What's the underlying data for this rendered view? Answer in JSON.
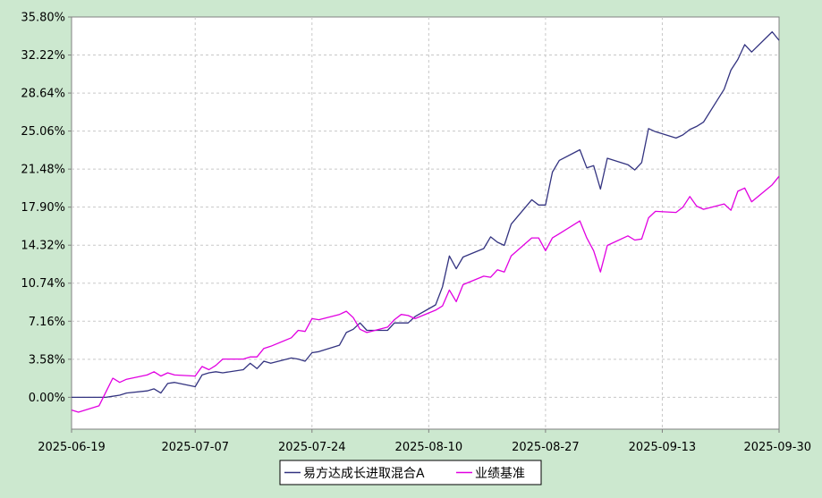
{
  "chart_data": {
    "type": "line",
    "title": "",
    "xlabel": "",
    "ylabel": "",
    "x_ticks": [
      "2025-06-19",
      "2025-07-07",
      "2025-07-24",
      "2025-08-10",
      "2025-08-27",
      "2025-09-13",
      "2025-09-30"
    ],
    "y_ticks": [
      "0.00%",
      "3.58%",
      "7.16%",
      "10.74%",
      "14.32%",
      "17.90%",
      "21.48%",
      "25.06%",
      "28.64%",
      "32.22%",
      "35.80%"
    ],
    "ylim": [
      -3.0,
      35.8
    ],
    "xlim": [
      "2025-06-19",
      "2025-09-30"
    ],
    "grid": true,
    "legend": "bottom-center",
    "colors": {
      "page_bg": "#cce8cf",
      "plot_bg": "#ffffff",
      "grid": "#c8c8c8"
    },
    "series": [
      {
        "name": "易方达成长进取混合A",
        "color": "#333380",
        "points": [
          [
            "2025-06-19",
            0.0
          ],
          [
            "2025-06-20",
            0.0
          ],
          [
            "2025-06-23",
            0.0
          ],
          [
            "2025-06-24",
            0.0
          ],
          [
            "2025-06-25",
            0.1
          ],
          [
            "2025-06-26",
            0.2
          ],
          [
            "2025-06-27",
            0.4
          ],
          [
            "2025-06-30",
            0.6
          ],
          [
            "2025-07-01",
            0.8
          ],
          [
            "2025-07-02",
            0.4
          ],
          [
            "2025-07-03",
            1.3
          ],
          [
            "2025-07-04",
            1.4
          ],
          [
            "2025-07-07",
            1.0
          ],
          [
            "2025-07-08",
            2.1
          ],
          [
            "2025-07-09",
            2.3
          ],
          [
            "2025-07-10",
            2.4
          ],
          [
            "2025-07-11",
            2.3
          ],
          [
            "2025-07-14",
            2.6
          ],
          [
            "2025-07-15",
            3.2
          ],
          [
            "2025-07-16",
            2.7
          ],
          [
            "2025-07-17",
            3.4
          ],
          [
            "2025-07-18",
            3.2
          ],
          [
            "2025-07-21",
            3.7
          ],
          [
            "2025-07-22",
            3.6
          ],
          [
            "2025-07-23",
            3.4
          ],
          [
            "2025-07-24",
            4.2
          ],
          [
            "2025-07-25",
            4.3
          ],
          [
            "2025-07-28",
            4.9
          ],
          [
            "2025-07-29",
            6.1
          ],
          [
            "2025-07-30",
            6.4
          ],
          [
            "2025-07-31",
            7.0
          ],
          [
            "2025-08-01",
            6.3
          ],
          [
            "2025-08-04",
            6.3
          ],
          [
            "2025-08-05",
            7.0
          ],
          [
            "2025-08-06",
            7.0
          ],
          [
            "2025-08-07",
            7.0
          ],
          [
            "2025-08-08",
            7.6
          ],
          [
            "2025-08-11",
            8.7
          ],
          [
            "2025-08-12",
            10.4
          ],
          [
            "2025-08-13",
            13.3
          ],
          [
            "2025-08-14",
            12.1
          ],
          [
            "2025-08-15",
            13.2
          ],
          [
            "2025-08-18",
            14.0
          ],
          [
            "2025-08-19",
            15.1
          ],
          [
            "2025-08-20",
            14.6
          ],
          [
            "2025-08-21",
            14.3
          ],
          [
            "2025-08-22",
            16.3
          ],
          [
            "2025-08-25",
            18.6
          ],
          [
            "2025-08-26",
            18.1
          ],
          [
            "2025-08-27",
            18.1
          ],
          [
            "2025-08-28",
            21.2
          ],
          [
            "2025-08-29",
            22.3
          ],
          [
            "2025-09-01",
            23.3
          ],
          [
            "2025-09-02",
            21.6
          ],
          [
            "2025-09-03",
            21.8
          ],
          [
            "2025-09-04",
            19.6
          ],
          [
            "2025-09-05",
            22.5
          ],
          [
            "2025-09-08",
            21.9
          ],
          [
            "2025-09-09",
            21.4
          ],
          [
            "2025-09-10",
            22.1
          ],
          [
            "2025-09-11",
            25.3
          ],
          [
            "2025-09-12",
            25.0
          ],
          [
            "2025-09-15",
            24.4
          ],
          [
            "2025-09-16",
            24.7
          ],
          [
            "2025-09-17",
            25.2
          ],
          [
            "2025-09-18",
            25.5
          ],
          [
            "2025-09-19",
            25.9
          ],
          [
            "2025-09-22",
            29.0
          ],
          [
            "2025-09-23",
            30.8
          ],
          [
            "2025-09-24",
            31.8
          ],
          [
            "2025-09-25",
            33.2
          ],
          [
            "2025-09-26",
            32.5
          ],
          [
            "2025-09-29",
            34.4
          ],
          [
            "2025-09-30",
            33.6
          ]
        ]
      },
      {
        "name": "业绩基准",
        "color": "#e100e1",
        "points": [
          [
            "2025-06-19",
            -1.2
          ],
          [
            "2025-06-20",
            -1.4
          ],
          [
            "2025-06-23",
            -0.8
          ],
          [
            "2025-06-24",
            0.5
          ],
          [
            "2025-06-25",
            1.8
          ],
          [
            "2025-06-26",
            1.4
          ],
          [
            "2025-06-27",
            1.7
          ],
          [
            "2025-06-30",
            2.1
          ],
          [
            "2025-07-01",
            2.4
          ],
          [
            "2025-07-02",
            2.0
          ],
          [
            "2025-07-03",
            2.3
          ],
          [
            "2025-07-04",
            2.1
          ],
          [
            "2025-07-07",
            2.0
          ],
          [
            "2025-07-08",
            2.9
          ],
          [
            "2025-07-09",
            2.6
          ],
          [
            "2025-07-10",
            3.0
          ],
          [
            "2025-07-11",
            3.6
          ],
          [
            "2025-07-14",
            3.6
          ],
          [
            "2025-07-15",
            3.8
          ],
          [
            "2025-07-16",
            3.8
          ],
          [
            "2025-07-17",
            4.6
          ],
          [
            "2025-07-18",
            4.8
          ],
          [
            "2025-07-21",
            5.6
          ],
          [
            "2025-07-22",
            6.3
          ],
          [
            "2025-07-23",
            6.2
          ],
          [
            "2025-07-24",
            7.4
          ],
          [
            "2025-07-25",
            7.3
          ],
          [
            "2025-07-28",
            7.8
          ],
          [
            "2025-07-29",
            8.1
          ],
          [
            "2025-07-30",
            7.5
          ],
          [
            "2025-07-31",
            6.4
          ],
          [
            "2025-08-01",
            6.1
          ],
          [
            "2025-08-04",
            6.6
          ],
          [
            "2025-08-05",
            7.3
          ],
          [
            "2025-08-06",
            7.8
          ],
          [
            "2025-08-07",
            7.7
          ],
          [
            "2025-08-08",
            7.4
          ],
          [
            "2025-08-11",
            8.2
          ],
          [
            "2025-08-12",
            8.6
          ],
          [
            "2025-08-13",
            10.1
          ],
          [
            "2025-08-14",
            9.0
          ],
          [
            "2025-08-15",
            10.6
          ],
          [
            "2025-08-18",
            11.4
          ],
          [
            "2025-08-19",
            11.3
          ],
          [
            "2025-08-20",
            12.0
          ],
          [
            "2025-08-21",
            11.8
          ],
          [
            "2025-08-22",
            13.3
          ],
          [
            "2025-08-25",
            15.0
          ],
          [
            "2025-08-26",
            15.0
          ],
          [
            "2025-08-27",
            13.8
          ],
          [
            "2025-08-28",
            15.0
          ],
          [
            "2025-08-29",
            15.4
          ],
          [
            "2025-09-01",
            16.6
          ],
          [
            "2025-09-02",
            15.0
          ],
          [
            "2025-09-03",
            13.8
          ],
          [
            "2025-09-04",
            11.8
          ],
          [
            "2025-09-05",
            14.3
          ],
          [
            "2025-09-08",
            15.2
          ],
          [
            "2025-09-09",
            14.8
          ],
          [
            "2025-09-10",
            14.9
          ],
          [
            "2025-09-11",
            16.9
          ],
          [
            "2025-09-12",
            17.5
          ],
          [
            "2025-09-15",
            17.4
          ],
          [
            "2025-09-16",
            17.9
          ],
          [
            "2025-09-17",
            18.9
          ],
          [
            "2025-09-18",
            18.0
          ],
          [
            "2025-09-19",
            17.7
          ],
          [
            "2025-09-22",
            18.2
          ],
          [
            "2025-09-23",
            17.6
          ],
          [
            "2025-09-24",
            19.4
          ],
          [
            "2025-09-25",
            19.7
          ],
          [
            "2025-09-26",
            18.4
          ],
          [
            "2025-09-29",
            20.0
          ],
          [
            "2025-09-30",
            20.8
          ]
        ]
      }
    ]
  }
}
